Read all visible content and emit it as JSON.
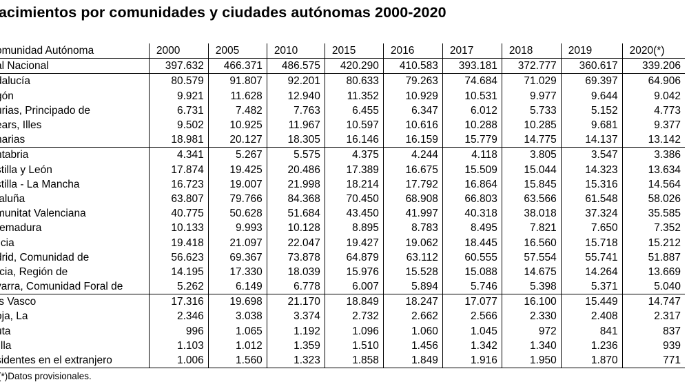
{
  "title": "acimientos por comunidades y ciudades autónomas 2000-2020",
  "table": {
    "headers": [
      "omunidad Autónoma",
      "2000",
      "2005",
      "2010",
      "2015",
      "2016",
      "2017",
      "2018",
      "2019",
      "2020(*)"
    ],
    "rows": [
      [
        "al Nacional",
        "397.632",
        "466.371",
        "486.575",
        "420.290",
        "410.583",
        "393.181",
        "372.777",
        "360.617",
        "339.206"
      ],
      [
        "dalucía",
        "80.579",
        "91.807",
        "92.201",
        "80.633",
        "79.263",
        "74.684",
        "71.029",
        "69.397",
        "64.906"
      ],
      [
        "gón",
        "9.921",
        "11.628",
        "12.940",
        "11.352",
        "10.929",
        "10.531",
        "9.977",
        "9.644",
        "9.042"
      ],
      [
        "urias, Principado de",
        "6.731",
        "7.482",
        "7.763",
        "6.455",
        "6.347",
        "6.012",
        "5.733",
        "5.152",
        "4.773"
      ],
      [
        "ears, Illes",
        "9.502",
        "10.925",
        "11.967",
        "10.597",
        "10.616",
        "10.288",
        "10.285",
        "9.681",
        "9.377"
      ],
      [
        "narias",
        "18.981",
        "20.127",
        "18.305",
        "16.146",
        "16.159",
        "15.779",
        "14.775",
        "14.137",
        "13.142"
      ],
      [
        "ntabria",
        "4.341",
        "5.267",
        "5.575",
        "4.375",
        "4.244",
        "4.118",
        "3.805",
        "3.547",
        "3.386"
      ],
      [
        "stilla y León",
        "17.874",
        "19.425",
        "20.486",
        "17.389",
        "16.675",
        "15.509",
        "15.044",
        "14.323",
        "13.634"
      ],
      [
        "stilla - La Mancha",
        "16.723",
        "19.007",
        "21.998",
        "18.214",
        "17.792",
        "16.864",
        "15.845",
        "15.316",
        "14.564"
      ],
      [
        "taluña",
        "63.807",
        "79.766",
        "84.368",
        "70.450",
        "68.908",
        "66.803",
        "63.566",
        "61.548",
        "58.026"
      ],
      [
        "munitat Valenciana",
        "40.775",
        "50.628",
        "51.684",
        "43.450",
        "41.997",
        "40.318",
        "38.018",
        "37.324",
        "35.585"
      ],
      [
        "remadura",
        "10.133",
        "9.993",
        "10.128",
        "8.895",
        "8.783",
        "8.495",
        "7.821",
        "7.650",
        "7.352"
      ],
      [
        "licia",
        "19.418",
        "21.097",
        "22.047",
        "19.427",
        "19.062",
        "18.445",
        "16.560",
        "15.718",
        "15.212"
      ],
      [
        "drid, Comunidad de",
        "56.623",
        "69.367",
        "73.878",
        "64.879",
        "63.112",
        "60.555",
        "57.554",
        "55.741",
        "51.887"
      ],
      [
        "rcia, Región de",
        "14.195",
        "17.330",
        "18.039",
        "15.976",
        "15.528",
        "15.088",
        "14.675",
        "14.264",
        "13.669"
      ],
      [
        "varra, Comunidad Foral de",
        "5.262",
        "6.149",
        "6.778",
        "6.007",
        "5.894",
        "5.746",
        "5.398",
        "5.371",
        "5.040"
      ],
      [
        "ís Vasco",
        "17.316",
        "19.698",
        "21.170",
        "18.849",
        "18.247",
        "17.077",
        "16.100",
        "15.449",
        "14.747"
      ],
      [
        "oja, La",
        "2.346",
        "3.038",
        "3.374",
        "2.732",
        "2.662",
        "2.566",
        "2.330",
        "2.408",
        "2.317"
      ],
      [
        "uta",
        "996",
        "1.065",
        "1.192",
        "1.096",
        "1.060",
        "1.045",
        "972",
        "841",
        "837"
      ],
      [
        "lilla",
        "1.103",
        "1.012",
        "1.359",
        "1.510",
        "1.456",
        "1.342",
        "1.340",
        "1.236",
        "939"
      ],
      [
        "sidentes en el extranjero",
        "1.006",
        "1.560",
        "1.323",
        "1.858",
        "1.849",
        "1.916",
        "1.950",
        "1.870",
        "771"
      ]
    ]
  },
  "note": "Datos provisionales."
}
